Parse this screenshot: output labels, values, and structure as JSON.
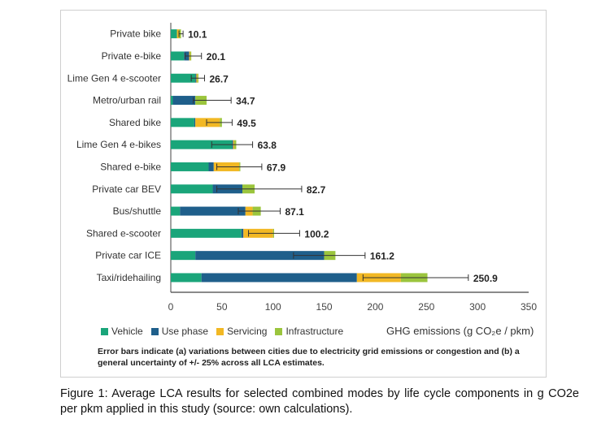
{
  "chart_data": {
    "type": "bar",
    "orientation": "horizontal",
    "stacked": true,
    "categories": [
      "Private bike",
      "Private e-bike",
      "Lime Gen 4 e-scooter",
      "Metro/urban rail",
      "Shared bike",
      "Lime Gen 4 e-bikes",
      "Shared e-bike",
      "Private car BEV",
      "Bus/shuttle",
      "Shared e-scooter",
      "Private car ICE",
      "Taxi/ridehailing"
    ],
    "series": [
      {
        "name": "Vehicle",
        "color": "#1aa57a",
        "values": [
          6,
          13,
          24,
          2,
          23,
          60,
          37,
          41,
          9,
          69,
          24,
          30
        ]
      },
      {
        "name": "Use phase",
        "color": "#1f5f8b",
        "values": [
          0,
          5,
          1,
          22,
          1,
          1,
          5,
          29,
          64,
          2,
          126,
          152
        ]
      },
      {
        "name": "Servicing",
        "color": "#f2b824",
        "values": [
          2,
          1,
          1,
          0,
          24,
          1,
          25,
          0,
          7,
          29,
          0,
          43
        ]
      },
      {
        "name": "Infrastructure",
        "color": "#9bc53d",
        "values": [
          2,
          1,
          1,
          11,
          2,
          2,
          1,
          12,
          8,
          1,
          11,
          26
        ]
      }
    ],
    "totals": [
      10.1,
      20.1,
      26.7,
      34.7,
      49.5,
      63.8,
      67.9,
      82.7,
      87.1,
      100.2,
      161.2,
      250.9
    ],
    "total_labels": [
      "10.1",
      "20.1",
      "26.7",
      "34.7",
      "49.5",
      "63.8",
      "67.9",
      "82.7",
      "87.1",
      "100.2",
      "161.2",
      "250.9"
    ],
    "error_low": [
      8,
      14,
      20,
      22,
      35,
      40,
      45,
      45,
      66,
      76,
      120,
      188
    ],
    "error_high": [
      12,
      30,
      33,
      59,
      60,
      80,
      89,
      128,
      107,
      126,
      190,
      291
    ],
    "x_ticks": [
      "0",
      "50",
      "100",
      "150",
      "200",
      "250",
      "300",
      "350"
    ],
    "xlim": [
      0,
      350
    ],
    "xlabel": "GHG emissions (g CO₂e / pkm)",
    "legend_position": "bottom-left"
  },
  "legend": [
    "Vehicle",
    "Use phase",
    "Servicing",
    "Infrastructure"
  ],
  "note": "Error bars indicate (a) variations between cities due to electricity grid emissions or congestion and (b) a general uncertainty of +/- 25% across all LCA estimates.",
  "caption": "Figure 1: Average LCA results for selected combined modes by life cycle components in g CO2e per pkm applied in this study (source: own calculations)."
}
